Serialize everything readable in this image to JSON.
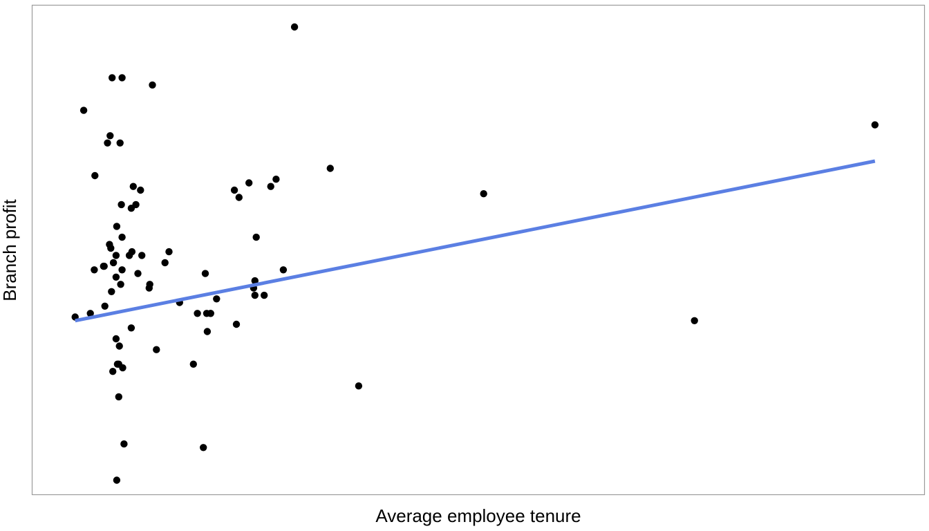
{
  "chart_data": {
    "type": "scatter",
    "title": "",
    "xlabel": "Average employee tenure",
    "ylabel": "Branch profit",
    "xlim": [
      0,
      13.5
    ],
    "ylim": [
      0,
      13.5
    ],
    "x_ticks_shown": false,
    "y_ticks_shown": false,
    "grid": false,
    "legend": "none",
    "points_color": "#000000",
    "trendline_color": "#5b7fe3",
    "frame_color": "#9a9a9a",
    "series": [
      {
        "type": "scatter",
        "x": [
          3.97,
          1.21,
          1.36,
          1.82,
          0.78,
          1.18,
          1.33,
          1.64,
          1.14,
          0.95,
          1.53,
          1.35,
          1.28,
          1.57,
          4.51,
          3.28,
          1.5,
          1.19,
          2.07,
          1.36,
          3.69,
          6.83,
          1.17,
          1.66,
          1.08,
          1.27,
          1.78,
          1.09,
          1.47,
          1.23,
          1.27,
          1.51,
          0.94,
          1.2,
          0.65,
          1.1,
          1.6,
          0.88,
          1.27,
          1.5,
          1.34,
          1.77,
          1.36,
          2.01,
          2.62,
          2.23,
          2.5,
          1.88,
          2.44,
          2.7,
          2.7,
          2.79,
          2.64,
          2.65,
          3.09,
          3.37,
          3.37,
          3.35,
          3.51,
          3.39,
          3.61,
          3.06,
          3.13,
          3.8,
          4.94,
          10.02,
          12.75,
          1.32,
          1.31,
          1.29,
          1.22,
          1.37,
          1.31,
          1.39,
          1.28,
          2.59
        ],
        "y": [
          12.9,
          11.5,
          11.5,
          11.3,
          10.6,
          9.9,
          9.7,
          8.4,
          9.7,
          8.8,
          8.5,
          8.0,
          7.4,
          8.0,
          9.0,
          8.6,
          7.9,
          6.8,
          6.7,
          7.1,
          8.7,
          8.3,
          6.9,
          6.6,
          6.3,
          6.0,
          5.8,
          6.3,
          6.6,
          6.4,
          6.6,
          6.7,
          6.2,
          5.6,
          4.9,
          5.2,
          6.1,
          5.0,
          4.3,
          4.6,
          5.8,
          5.7,
          6.2,
          6.4,
          6.1,
          5.3,
          5.0,
          4.0,
          3.6,
          5.0,
          5.0,
          5.4,
          5.0,
          4.5,
          4.7,
          5.5,
          5.9,
          5.7,
          5.5,
          7.1,
          8.5,
          8.4,
          8.2,
          6.2,
          3.0,
          4.8,
          10.2,
          4.1,
          3.6,
          3.6,
          3.4,
          3.5,
          2.7,
          1.4,
          0.4,
          1.3
        ],
        "point_mapping_note_removed": ""
      },
      {
        "type": "line",
        "x": [
          0.65,
          12.75
        ],
        "y": [
          4.8,
          9.2
        ]
      }
    ]
  }
}
